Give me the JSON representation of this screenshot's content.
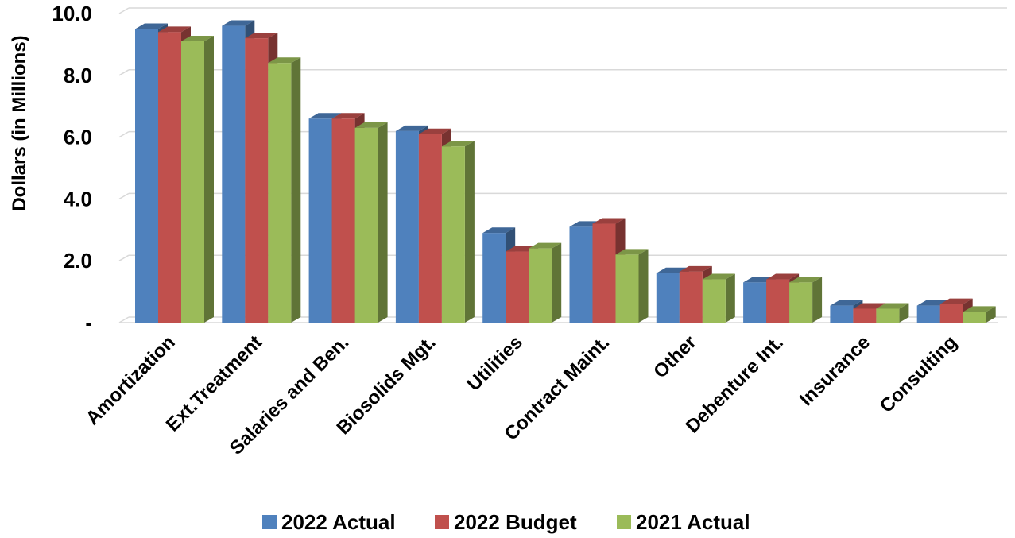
{
  "chart_data": {
    "type": "bar",
    "ylabel": "Dollars (in Millions)",
    "ylim": [
      0,
      10
    ],
    "yticks": [
      "-",
      "2.0",
      "4.0",
      "6.0",
      "8.0",
      "10.0"
    ],
    "grid": true,
    "legend": "bottom",
    "categories": [
      "Amortization",
      "Ext.Treatment",
      "Salaries and Ben.",
      "Biosolids Mgt.",
      "Utilities",
      "Contract Maint.",
      "Other",
      "Debenture Int.",
      "Insurance",
      "Consulting"
    ],
    "series": [
      {
        "name": "2022 Actual",
        "color": "#4F81BD",
        "values": [
          9.5,
          9.6,
          6.6,
          6.2,
          2.9,
          3.1,
          1.6,
          1.3,
          0.55,
          0.55
        ]
      },
      {
        "name": "2022 Budget",
        "color": "#C0504D",
        "values": [
          9.4,
          9.2,
          6.6,
          6.1,
          2.3,
          3.2,
          1.65,
          1.4,
          0.45,
          0.6
        ]
      },
      {
        "name": "2021 Actual",
        "color": "#9BBB59",
        "values": [
          9.1,
          8.4,
          6.3,
          5.7,
          2.4,
          2.2,
          1.4,
          1.3,
          0.45,
          0.35
        ]
      }
    ]
  }
}
